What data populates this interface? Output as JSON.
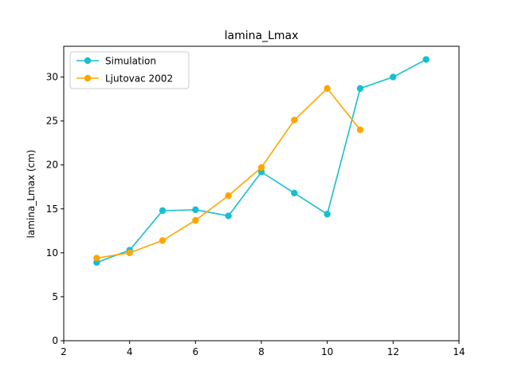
{
  "chart_data": {
    "type": "line",
    "title": "lamina_Lmax",
    "xlabel": "",
    "ylabel": "lamina_Lmax (cm)",
    "xlim": [
      2,
      14
    ],
    "ylim": [
      0,
      33.5
    ],
    "xticks": [
      2,
      4,
      6,
      8,
      10,
      12,
      14
    ],
    "yticks": [
      0,
      5,
      10,
      15,
      20,
      25,
      30
    ],
    "grid": false,
    "legend_position": "top-left",
    "series": [
      {
        "name": "Simulation",
        "color": "#17becf",
        "x": [
          3,
          4,
          5,
          6,
          7,
          8,
          9,
          10,
          11,
          12,
          13
        ],
        "y": [
          8.9,
          10.3,
          14.8,
          14.9,
          14.2,
          19.2,
          16.8,
          14.4,
          28.7,
          30.0,
          32.0
        ]
      },
      {
        "name": "Ljutovac 2002",
        "color": "#ffa500",
        "x": [
          3,
          4,
          5,
          6,
          7,
          8,
          9,
          10,
          11
        ],
        "y": [
          9.4,
          10.0,
          11.4,
          13.7,
          16.5,
          19.7,
          25.1,
          28.7,
          24.0
        ]
      }
    ]
  }
}
